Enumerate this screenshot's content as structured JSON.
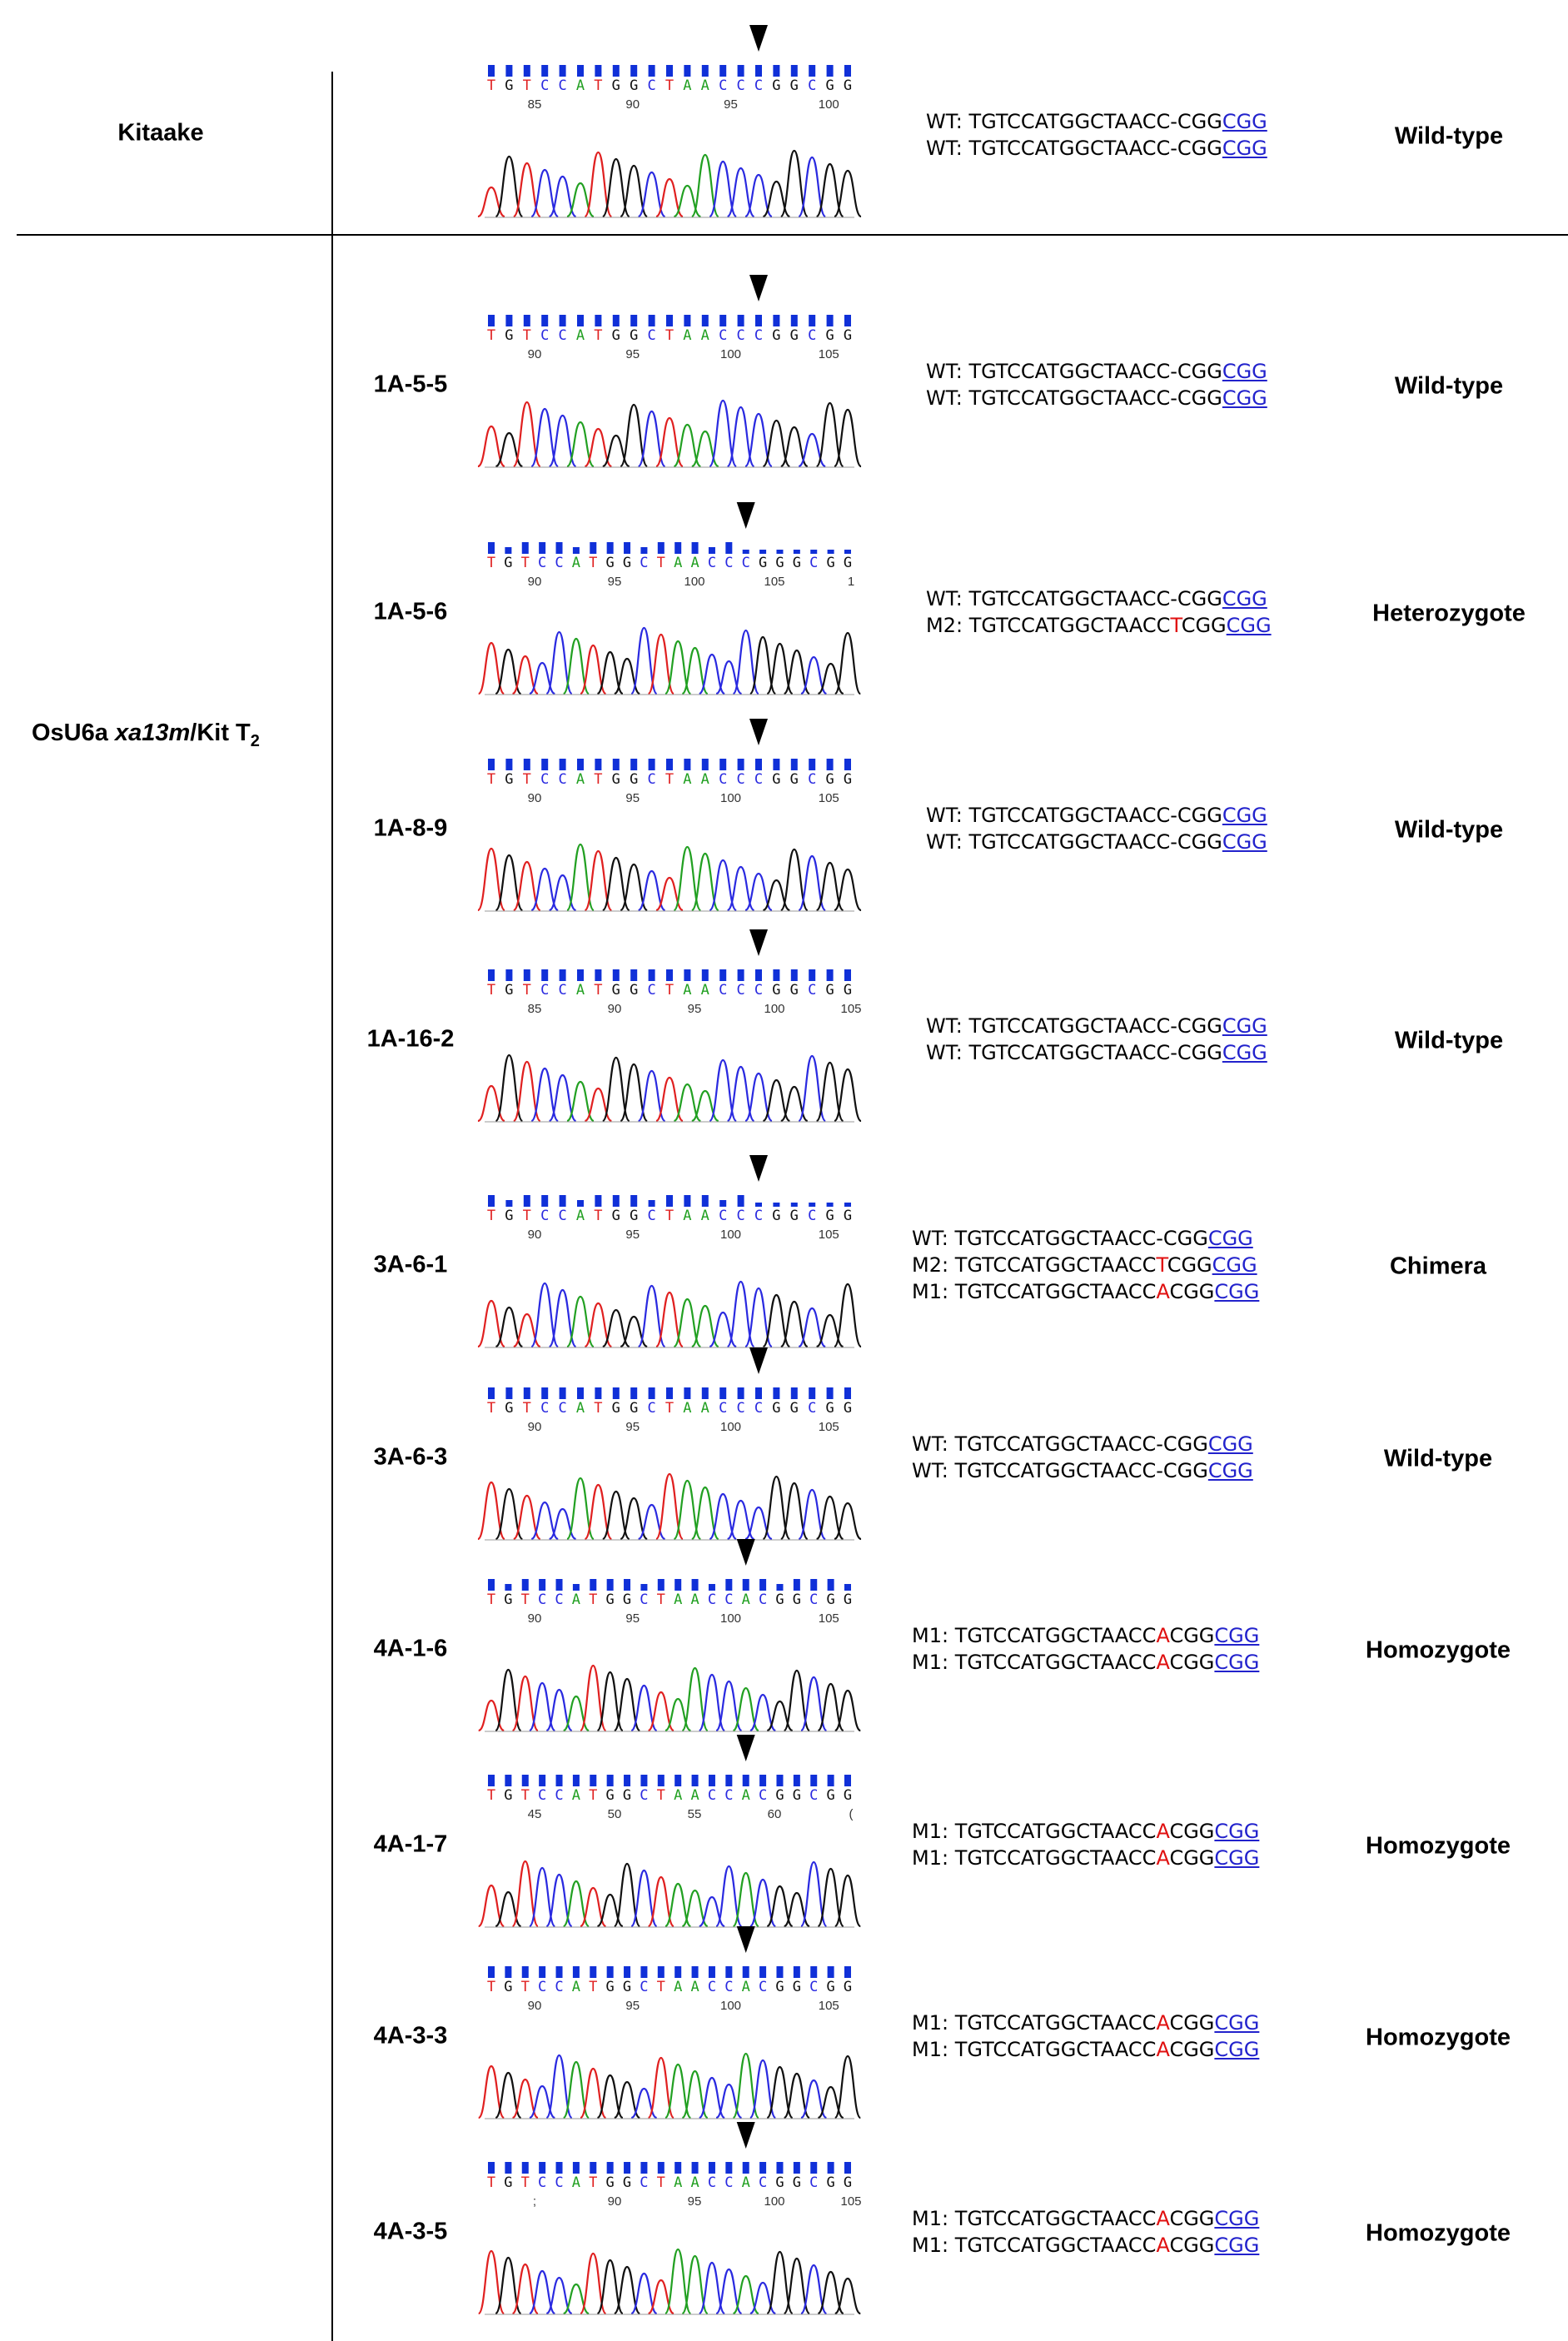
{
  "header": {
    "control_label": "Kitaake"
  },
  "group": {
    "label_prefix": "OsU6a ",
    "label_gene": "xa13m",
    "label_suffix": "/Kit T",
    "label_sub": "2"
  },
  "colors": {
    "A": "#22a022",
    "C": "#2a2ae0",
    "G": "#111111",
    "T": "#e02020",
    "quality": "#1030d8",
    "pam": "#2222cc",
    "mutation": "#e01010"
  },
  "rows": [
    {
      "name": "",
      "genotype": "Wild-type",
      "bases": "TGTCCATGGCTAACCCGGCGG",
      "ticks": [
        "85",
        "90",
        "95",
        "100"
      ],
      "seqs": [
        {
          "prefix": "WT: ",
          "pre": "TGTCCATGGCTAACC",
          "mut": "-",
          "post": "CGG",
          "pam": "CGG"
        },
        {
          "prefix": "WT: ",
          "pre": "TGTCCATGGCTAACC",
          "mut": "-",
          "post": "CGG",
          "pam": "CGG"
        }
      ]
    },
    {
      "name": "1A-5-5",
      "genotype": "Wild-type",
      "bases": "TGTCCATGGCTAACCCGGCGG",
      "ticks": [
        "90",
        "95",
        "100",
        "105"
      ],
      "seqs": [
        {
          "prefix": "WT: ",
          "pre": "TGTCCATGGCTAACC",
          "mut": "-",
          "post": "CGG",
          "pam": "CGG"
        },
        {
          "prefix": "WT: ",
          "pre": "TGTCCATGGCTAACC",
          "mut": "-",
          "post": "CGG",
          "pam": "CGG"
        }
      ]
    },
    {
      "name": "1A-5-6",
      "genotype": "Heterozygote",
      "bases": "TGTCCATGGCTAACCCGGGCGG",
      "ticks": [
        "90",
        "95",
        "100",
        "105",
        "1"
      ],
      "seqs": [
        {
          "prefix": "WT: ",
          "pre": "TGTCCATGGCTAACC",
          "mut": "-",
          "post": "CGG",
          "pam": "CGG"
        },
        {
          "prefix": "M2: ",
          "pre": "TGTCCATGGCTAACC",
          "mut": "T",
          "post": "CGG",
          "pam": "CGG",
          "red": true
        }
      ]
    },
    {
      "name": "1A-8-9",
      "genotype": "Wild-type",
      "bases": "TGTCCATGGCTAACCCGGCGG",
      "ticks": [
        "90",
        "95",
        "100",
        "105"
      ],
      "seqs": [
        {
          "prefix": "WT: ",
          "pre": "TGTCCATGGCTAACC",
          "mut": "-",
          "post": "CGG",
          "pam": "CGG"
        },
        {
          "prefix": "WT: ",
          "pre": "TGTCCATGGCTAACC",
          "mut": "-",
          "post": "CGG",
          "pam": "CGG"
        }
      ]
    },
    {
      "name": "1A-16-2",
      "genotype": "Wild-type",
      "bases": "TGTCCATGGCTAACCCGGCGG",
      "ticks": [
        "85",
        "90",
        "95",
        "100",
        "105"
      ],
      "seqs": [
        {
          "prefix": "WT: ",
          "pre": "TGTCCATGGCTAACC",
          "mut": "-",
          "post": "CGG",
          "pam": "CGG"
        },
        {
          "prefix": "WT: ",
          "pre": "TGTCCATGGCTAACC",
          "mut": "-",
          "post": "CGG",
          "pam": "CGG"
        }
      ]
    },
    {
      "name": "3A-6-1",
      "genotype": "Chimera",
      "bases": "TGTCCATGGCTAACCCGGCGG",
      "ticks": [
        "90",
        "95",
        "100",
        "105"
      ],
      "seqs": [
        {
          "prefix": "WT: ",
          "pre": "TGTCCATGGCTAACC",
          "mut": "-",
          "post": "CGG",
          "pam": "CGG"
        },
        {
          "prefix": "M2: ",
          "pre": "TGTCCATGGCTAACC",
          "mut": "T",
          "post": "CGG",
          "pam": "CGG",
          "red": true
        },
        {
          "prefix": "M1: ",
          "pre": "TGTCCATGGCTAACC",
          "mut": "A",
          "post": "CGG",
          "pam": "CGG",
          "red": true
        }
      ]
    },
    {
      "name": "3A-6-3",
      "genotype": "Wild-type",
      "bases": "TGTCCATGGCTAACCCGGCGG",
      "ticks": [
        "90",
        "95",
        "100",
        "105"
      ],
      "seqs": [
        {
          "prefix": "WT: ",
          "pre": "TGTCCATGGCTAACC",
          "mut": "-",
          "post": "CGG",
          "pam": "CGG"
        },
        {
          "prefix": "WT: ",
          "pre": "TGTCCATGGCTAACC",
          "mut": "-",
          "post": "CGG",
          "pam": "CGG"
        }
      ]
    },
    {
      "name": "4A-1-6",
      "genotype": "Homozygote",
      "bases": "TGTCCATGGCTAACCACGGCGG",
      "ticks": [
        "90",
        "95",
        "100",
        "105"
      ],
      "seqs": [
        {
          "prefix": "M1: ",
          "pre": "TGTCCATGGCTAACC",
          "mut": "A",
          "post": "CGG",
          "pam": "CGG",
          "red": true
        },
        {
          "prefix": "M1: ",
          "pre": "TGTCCATGGCTAACC",
          "mut": "A",
          "post": "CGG",
          "pam": "CGG",
          "red": true
        }
      ]
    },
    {
      "name": "4A-1-7",
      "genotype": "Homozygote",
      "bases": "TGTCCATGGCTAACCACGGCGG",
      "ticks": [
        "45",
        "50",
        "55",
        "60",
        "("
      ],
      "seqs": [
        {
          "prefix": "M1: ",
          "pre": "TGTCCATGGCTAACC",
          "mut": "A",
          "post": "CGG",
          "pam": "CGG",
          "red": true
        },
        {
          "prefix": "M1: ",
          "pre": "TGTCCATGGCTAACC",
          "mut": "A",
          "post": "CGG",
          "pam": "CGG",
          "red": true
        }
      ]
    },
    {
      "name": "4A-3-3",
      "genotype": "Homozygote",
      "bases": "TGTCCATGGCTAACCACGGCGG",
      "ticks": [
        "90",
        "95",
        "100",
        "105"
      ],
      "seqs": [
        {
          "prefix": "M1: ",
          "pre": "TGTCCATGGCTAACC",
          "mut": "A",
          "post": "CGG",
          "pam": "CGG",
          "red": true
        },
        {
          "prefix": "M1: ",
          "pre": "TGTCCATGGCTAACC",
          "mut": "A",
          "post": "CGG",
          "pam": "CGG",
          "red": true
        }
      ]
    },
    {
      "name": "4A-3-5",
      "genotype": "Homozygote",
      "bases": "TGTCCATGGCTAACCACGGCGG",
      "ticks": [
        ";",
        "90",
        "95",
        "100",
        "105"
      ],
      "seqs": [
        {
          "prefix": "M1: ",
          "pre": "TGTCCATGGCTAACC",
          "mut": "A",
          "post": "CGG",
          "pam": "CGG",
          "red": true
        },
        {
          "prefix": "M1: ",
          "pre": "TGTCCATGGCTAACC",
          "mut": "A",
          "post": "CGG",
          "pam": "CGG",
          "red": true
        }
      ]
    }
  ]
}
